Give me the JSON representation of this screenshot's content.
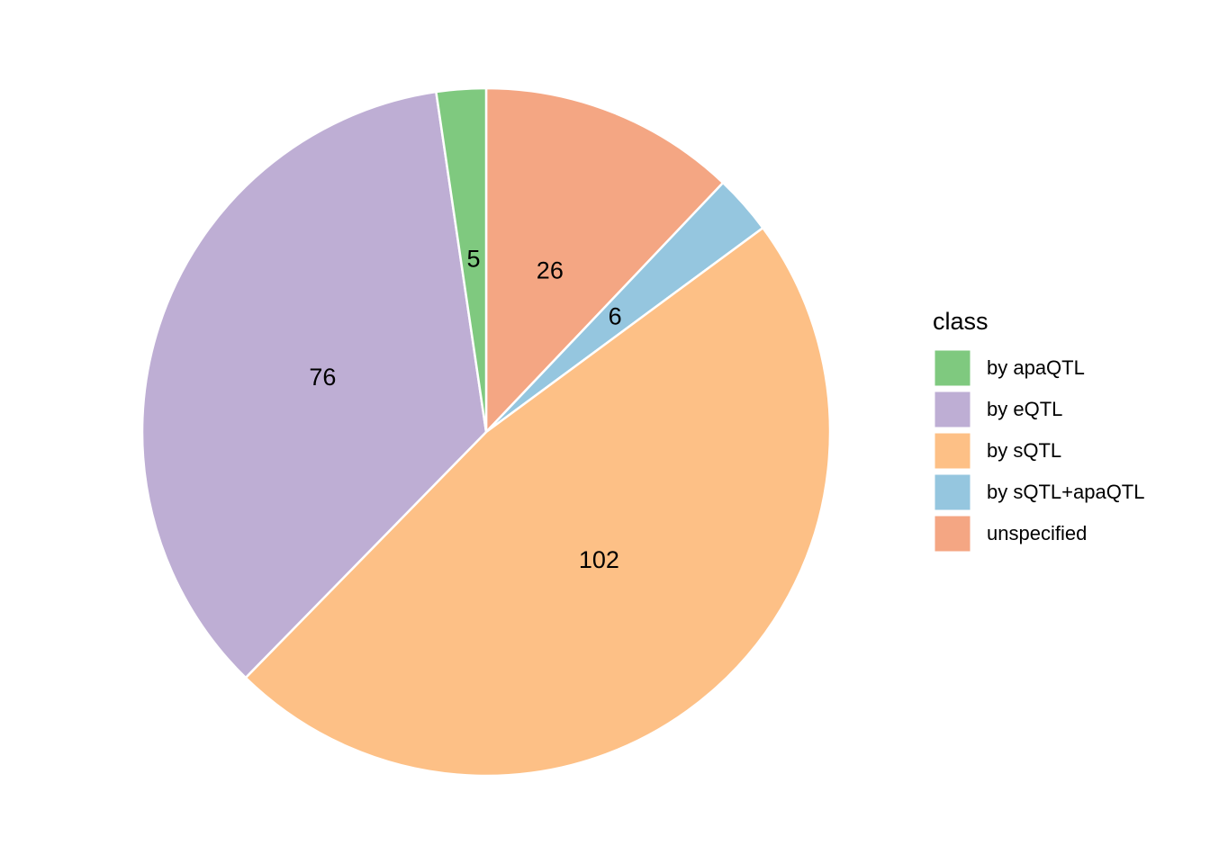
{
  "chart_data": {
    "type": "pie",
    "legend_title": "class",
    "categories": [
      "by apaQTL",
      "by eQTL",
      "by sQTL",
      "by sQTL+apaQTL",
      "unspecified"
    ],
    "values": [
      5,
      76,
      102,
      6,
      26
    ],
    "colors": [
      "#7fc97f",
      "#beaed4",
      "#fdc086",
      "#95c6df",
      "#f4a683"
    ],
    "legend": "right"
  }
}
